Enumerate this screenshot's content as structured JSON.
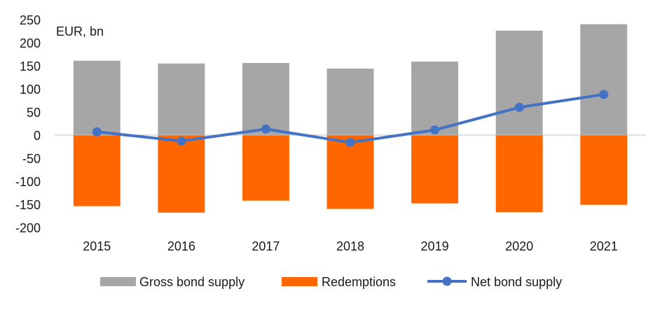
{
  "chart_data": {
    "type": "bar",
    "unit_label": "EUR, bn",
    "categories": [
      "2015",
      "2016",
      "2017",
      "2018",
      "2019",
      "2020",
      "2021"
    ],
    "series": [
      {
        "name": "Gross bond supply",
        "kind": "bar",
        "color": "#a6a6a6",
        "values": [
          161,
          155,
          156,
          144,
          159,
          226,
          240
        ]
      },
      {
        "name": "Redemptions",
        "kind": "bar",
        "color": "#ff6600",
        "values": [
          -154,
          -168,
          -142,
          -160,
          -148,
          -167,
          -151
        ]
      },
      {
        "name": "Net bond supply",
        "kind": "line",
        "color": "#4472c4",
        "values": [
          7,
          -13,
          13,
          -16,
          11,
          60,
          88
        ]
      }
    ],
    "ylim": [
      -200,
      250
    ],
    "yticks": [
      250,
      200,
      150,
      100,
      50,
      0,
      -50,
      -100,
      -150,
      -200
    ],
    "grid": false,
    "legend_position": "bottom"
  }
}
